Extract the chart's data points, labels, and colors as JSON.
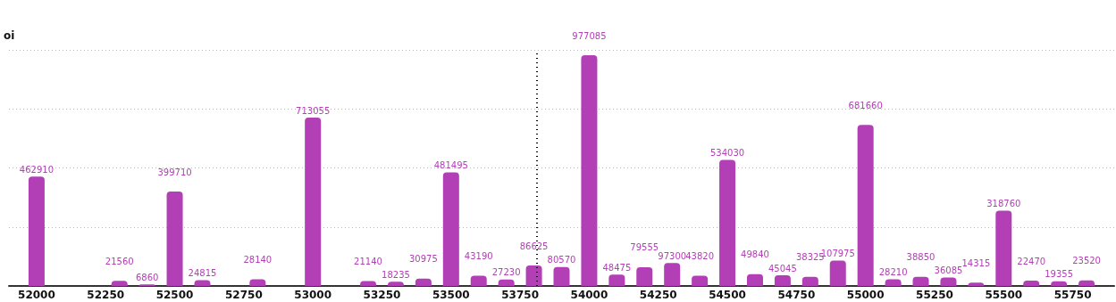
{
  "chart_data": {
    "type": "bar",
    "ylabel": "oi",
    "x": [
      52000,
      52300,
      52400,
      52500,
      52600,
      52800,
      53000,
      53200,
      53300,
      53400,
      53500,
      53600,
      53700,
      53800,
      53900,
      54000,
      54100,
      54200,
      54300,
      54400,
      54500,
      54600,
      54700,
      54800,
      54900,
      55000,
      55100,
      55200,
      55300,
      55400,
      55500,
      55600,
      55700,
      55800
    ],
    "values": [
      462910,
      21560,
      6860,
      399710,
      24815,
      28140,
      713055,
      21140,
      18235,
      30975,
      481495,
      43190,
      27230,
      86625,
      80570,
      977085,
      48475,
      79555,
      97300,
      43820,
      534030,
      49840,
      45045,
      38325,
      107975,
      681660,
      28210,
      38850,
      36085,
      14315,
      318760,
      22470,
      19355,
      23520
    ],
    "color": "#b23fb5",
    "data_labels": true,
    "xlim": [
      51900,
      55900
    ],
    "xticks": [
      52000,
      52250,
      52500,
      52750,
      53000,
      53250,
      53500,
      53750,
      54000,
      54250,
      54500,
      54750,
      55000,
      55250,
      55500,
      55750
    ],
    "ylim": [
      0,
      1000000
    ],
    "yticks": [
      0,
      250000,
      500000,
      750000,
      1000000
    ],
    "tick_labels": "x",
    "grid": "y",
    "ref_lines": [
      {
        "axis": "x",
        "value": 53810,
        "color": "#000000",
        "line_style": "dotted"
      }
    ]
  }
}
